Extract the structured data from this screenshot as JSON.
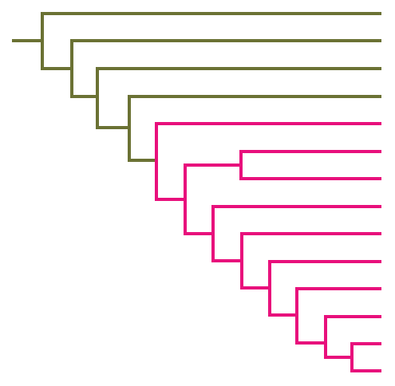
{
  "colors": [
    "#6b7234",
    "#e8107c"
  ]
}
